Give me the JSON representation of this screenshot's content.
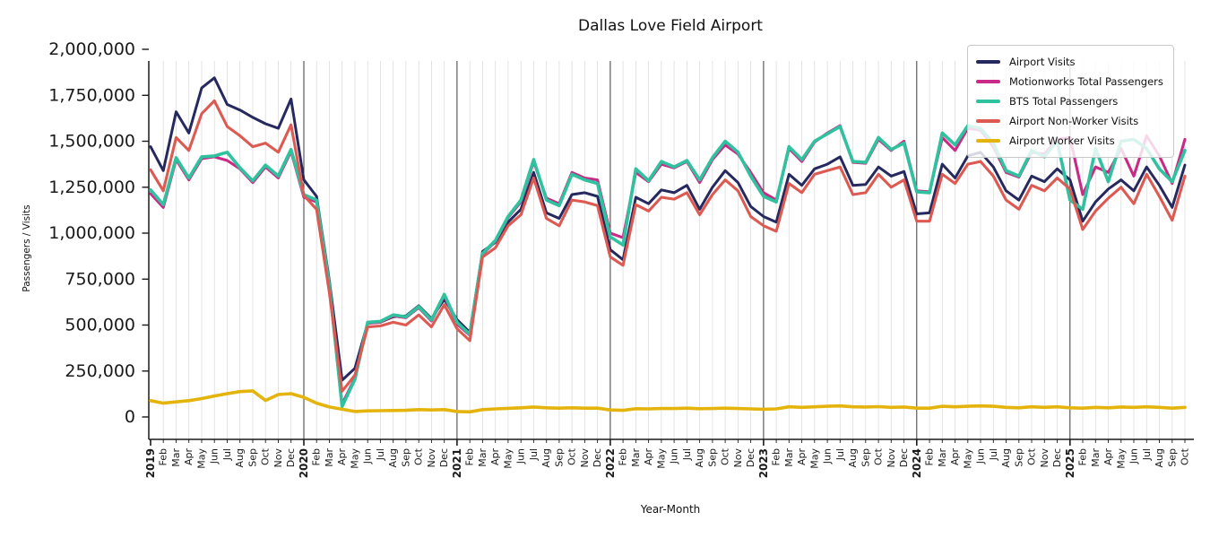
{
  "title": "Dallas Love Field Airport",
  "axes": {
    "x_label": "Year-Month",
    "y_label": "Passengers / Visits"
  },
  "chart_data": {
    "type": "line",
    "title": "Dallas Love Field Airport",
    "xlabel": "Year-Month",
    "ylabel": "Passengers / Visits",
    "ylim": [
      0,
      2000000
    ],
    "legend_position": "upper right",
    "grid": "light vertical gridline at every month; solid dark vertical line at each January (year boundary); no horizontal gridlines",
    "x": [
      "2019",
      "Feb",
      "Mar",
      "Apr",
      "May",
      "Jun",
      "Jul",
      "Aug",
      "Sep",
      "Oct",
      "Nov",
      "Dec",
      "2020",
      "Feb",
      "Mar",
      "Apr",
      "May",
      "Jun",
      "Jul",
      "Aug",
      "Sep",
      "Oct",
      "Nov",
      "Dec",
      "2021",
      "Feb",
      "Mar",
      "Apr",
      "May",
      "Jun",
      "Jul",
      "Aug",
      "Sep",
      "Oct",
      "Nov",
      "Dec",
      "2022",
      "Feb",
      "Mar",
      "Apr",
      "May",
      "Jun",
      "Jul",
      "Aug",
      "Sep",
      "Oct",
      "Nov",
      "Dec",
      "2023",
      "Feb",
      "Mar",
      "Apr",
      "May",
      "Jun",
      "Jul",
      "Aug",
      "Sep",
      "Oct",
      "Nov",
      "Dec",
      "2024",
      "Feb",
      "Mar",
      "Apr",
      "May",
      "Jun",
      "Jul",
      "Aug",
      "Sep",
      "Oct",
      "Nov",
      "Dec",
      "2025",
      "Feb",
      "Mar",
      "Apr",
      "May",
      "Jun",
      "Jul",
      "Aug",
      "Sep",
      "Oct"
    ],
    "y_ticks": [
      {
        "value": 0,
        "label": "0"
      },
      {
        "value": 250000,
        "label": "250,000"
      },
      {
        "value": 500000,
        "label": "500,000"
      },
      {
        "value": 750000,
        "label": "750,000"
      },
      {
        "value": 1000000,
        "label": "1,000,000"
      },
      {
        "value": 1250000,
        "label": "1,250,000"
      },
      {
        "value": 1500000,
        "label": "1,500,000"
      },
      {
        "value": 1750000,
        "label": "1,750,000"
      },
      {
        "value": 2000000,
        "label": "2,000,000"
      }
    ],
    "series": [
      {
        "name": "Airport Visits",
        "color": "#25295e",
        "values": [
          1470000,
          1340000,
          1660000,
          1545000,
          1790000,
          1845000,
          1700000,
          1670000,
          1630000,
          1595000,
          1570000,
          1730000,
          1290000,
          1200000,
          740000,
          200000,
          265000,
          510000,
          515000,
          545000,
          550000,
          605000,
          535000,
          640000,
          530000,
          460000,
          900000,
          950000,
          1060000,
          1130000,
          1330000,
          1110000,
          1080000,
          1210000,
          1220000,
          1200000,
          910000,
          855000,
          1195000,
          1160000,
          1235000,
          1220000,
          1260000,
          1130000,
          1250000,
          1340000,
          1275000,
          1145000,
          1090000,
          1060000,
          1320000,
          1260000,
          1350000,
          1375000,
          1415000,
          1260000,
          1265000,
          1360000,
          1310000,
          1335000,
          1105000,
          1110000,
          1375000,
          1300000,
          1420000,
          1440000,
          1360000,
          1230000,
          1180000,
          1310000,
          1280000,
          1350000,
          1290000,
          1065000,
          1170000,
          1240000,
          1290000,
          1230000,
          1360000,
          1260000,
          1140000,
          1370000
        ]
      },
      {
        "name": "Motionworks Total Passengers",
        "color": "#c92a85",
        "values": [
          1215000,
          1140000,
          1400000,
          1290000,
          1405000,
          1415000,
          1395000,
          1350000,
          1275000,
          1360000,
          1300000,
          1445000,
          1195000,
          1170000,
          705000,
          70000,
          212000,
          510000,
          515000,
          550000,
          540000,
          595000,
          522000,
          660000,
          505000,
          445000,
          885000,
          955000,
          1085000,
          1170000,
          1390000,
          1190000,
          1160000,
          1330000,
          1300000,
          1290000,
          1000000,
          975000,
          1330000,
          1280000,
          1375000,
          1355000,
          1390000,
          1275000,
          1400000,
          1480000,
          1430000,
          1330000,
          1220000,
          1180000,
          1460000,
          1390000,
          1495000,
          1545000,
          1585000,
          1385000,
          1380000,
          1510000,
          1450000,
          1500000,
          1230000,
          1225000,
          1520000,
          1450000,
          1570000,
          1560000,
          1470000,
          1330000,
          1305000,
          1440000,
          1430000,
          1510000,
          1520000,
          1210000,
          1360000,
          1330000,
          1460000,
          1310000,
          1530000,
          1420000,
          1270000,
          1510000
        ]
      },
      {
        "name": "BTS Total Passengers",
        "color": "#30c19f",
        "values": [
          1235000,
          1155000,
          1410000,
          1300000,
          1415000,
          1420000,
          1440000,
          1355000,
          1285000,
          1370000,
          1310000,
          1455000,
          1210000,
          1180000,
          715000,
          57000,
          205000,
          515000,
          520000,
          555000,
          545000,
          600000,
          528000,
          667000,
          515000,
          450000,
          890000,
          960000,
          1090000,
          1180000,
          1400000,
          1180000,
          1150000,
          1320000,
          1290000,
          1270000,
          980000,
          935000,
          1350000,
          1285000,
          1390000,
          1360000,
          1395000,
          1290000,
          1410000,
          1500000,
          1440000,
          1310000,
          1200000,
          1170000,
          1470000,
          1400000,
          1500000,
          1540000,
          1580000,
          1390000,
          1385000,
          1520000,
          1455000,
          1490000,
          1225000,
          1220000,
          1545000,
          1480000,
          1585000,
          1570000,
          1490000,
          1340000,
          1310000,
          1450000,
          1415000,
          1500000,
          1180000,
          1130000,
          1460000,
          1280000,
          1500000,
          1510000,
          1460000,
          1350000,
          1280000,
          1450000
        ]
      },
      {
        "name": "Airport Non-Worker Visits",
        "color": "#dd5a52",
        "values": [
          1345000,
          1230000,
          1520000,
          1450000,
          1650000,
          1720000,
          1580000,
          1530000,
          1470000,
          1490000,
          1440000,
          1590000,
          1205000,
          1130000,
          675000,
          140000,
          228000,
          490000,
          495000,
          515000,
          500000,
          555000,
          490000,
          610000,
          480000,
          415000,
          870000,
          920000,
          1040000,
          1100000,
          1300000,
          1080000,
          1040000,
          1180000,
          1170000,
          1150000,
          870000,
          825000,
          1155000,
          1120000,
          1195000,
          1185000,
          1220000,
          1100000,
          1210000,
          1290000,
          1230000,
          1090000,
          1040000,
          1010000,
          1270000,
          1220000,
          1320000,
          1340000,
          1360000,
          1210000,
          1220000,
          1320000,
          1250000,
          1290000,
          1065000,
          1065000,
          1320000,
          1270000,
          1375000,
          1390000,
          1310000,
          1180000,
          1130000,
          1260000,
          1230000,
          1300000,
          1240000,
          1020000,
          1120000,
          1190000,
          1250000,
          1160000,
          1320000,
          1200000,
          1070000,
          1310000
        ]
      },
      {
        "name": "Airport Worker Visits",
        "color": "#e4b40d",
        "values": [
          89000,
          75000,
          82000,
          89000,
          100000,
          114000,
          127000,
          138000,
          142000,
          90000,
          122000,
          127000,
          107000,
          75000,
          54000,
          42000,
          30000,
          33000,
          34000,
          35000,
          36000,
          40000,
          38000,
          40000,
          30000,
          28000,
          40000,
          44000,
          47000,
          50000,
          54000,
          50000,
          48000,
          50000,
          48000,
          48000,
          38000,
          36000,
          45000,
          44000,
          46000,
          46000,
          48000,
          45000,
          46000,
          48000,
          46000,
          44000,
          42000,
          44000,
          55000,
          52000,
          55000,
          58000,
          60000,
          55000,
          54000,
          56000,
          52000,
          54000,
          48000,
          48000,
          58000,
          55000,
          58000,
          60000,
          58000,
          52000,
          50000,
          55000,
          52000,
          55000,
          50000,
          48000,
          52000,
          50000,
          54000,
          52000,
          55000,
          52000,
          48000,
          52000
        ]
      }
    ]
  }
}
